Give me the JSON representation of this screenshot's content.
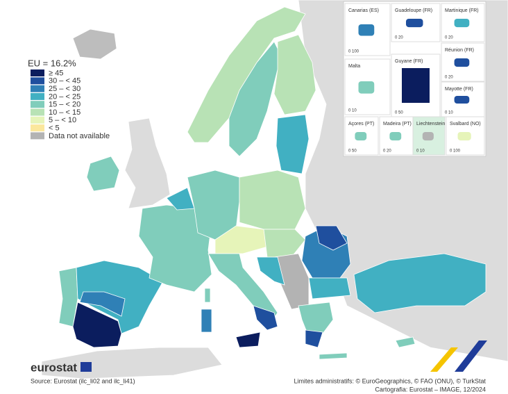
{
  "legend": {
    "title": "EU = 16.2%",
    "items": [
      {
        "label": "≥ 45",
        "color": "#0b1d5e"
      },
      {
        "label": "30 – < 45",
        "color": "#1f4f9e"
      },
      {
        "label": "25 – < 30",
        "color": "#2f80b6"
      },
      {
        "label": "20 – < 25",
        "color": "#41b0c2"
      },
      {
        "label": "15 – < 20",
        "color": "#80cdbb"
      },
      {
        "label": "10 – < 15",
        "color": "#b8e2b5"
      },
      {
        "label": "5 – < 10",
        "color": "#e6f4b9"
      },
      {
        "label": "< 5",
        "color": "#fbe79c"
      },
      {
        "label": "Data not available",
        "color": "#b3b3b3"
      }
    ]
  },
  "insets": [
    {
      "label": "Canarias (ES)",
      "scale": "0 100"
    },
    {
      "label": "Guadeloupe (FR)",
      "scale": "0 20"
    },
    {
      "label": "Martinique (FR)",
      "scale": "0 20"
    },
    {
      "label": "Réunion (FR)",
      "scale": "0 20"
    },
    {
      "label": "Malta",
      "scale": "0 10"
    },
    {
      "label": "Guyane (FR)",
      "scale": "0 50"
    },
    {
      "label": "Mayotte (FR)",
      "scale": "0 10"
    },
    {
      "label": "Açores (PT)",
      "scale": "0 50"
    },
    {
      "label": "Madeira (PT)",
      "scale": "0 20"
    },
    {
      "label": "Liechtenstein",
      "scale": "0 10"
    },
    {
      "label": "Svalbard (NO)",
      "scale": "0 100"
    }
  ],
  "footer": {
    "logo": "eurostat",
    "source": "Source: Eurostat (ilc_li02 and ilc_li41)",
    "boundaries": "Limites administratifs: © EuroGeographics, © FAO (ONU), © TurkStat",
    "cartography": "Cartografia: Eurostat – IMAGE, 12/2024"
  }
}
